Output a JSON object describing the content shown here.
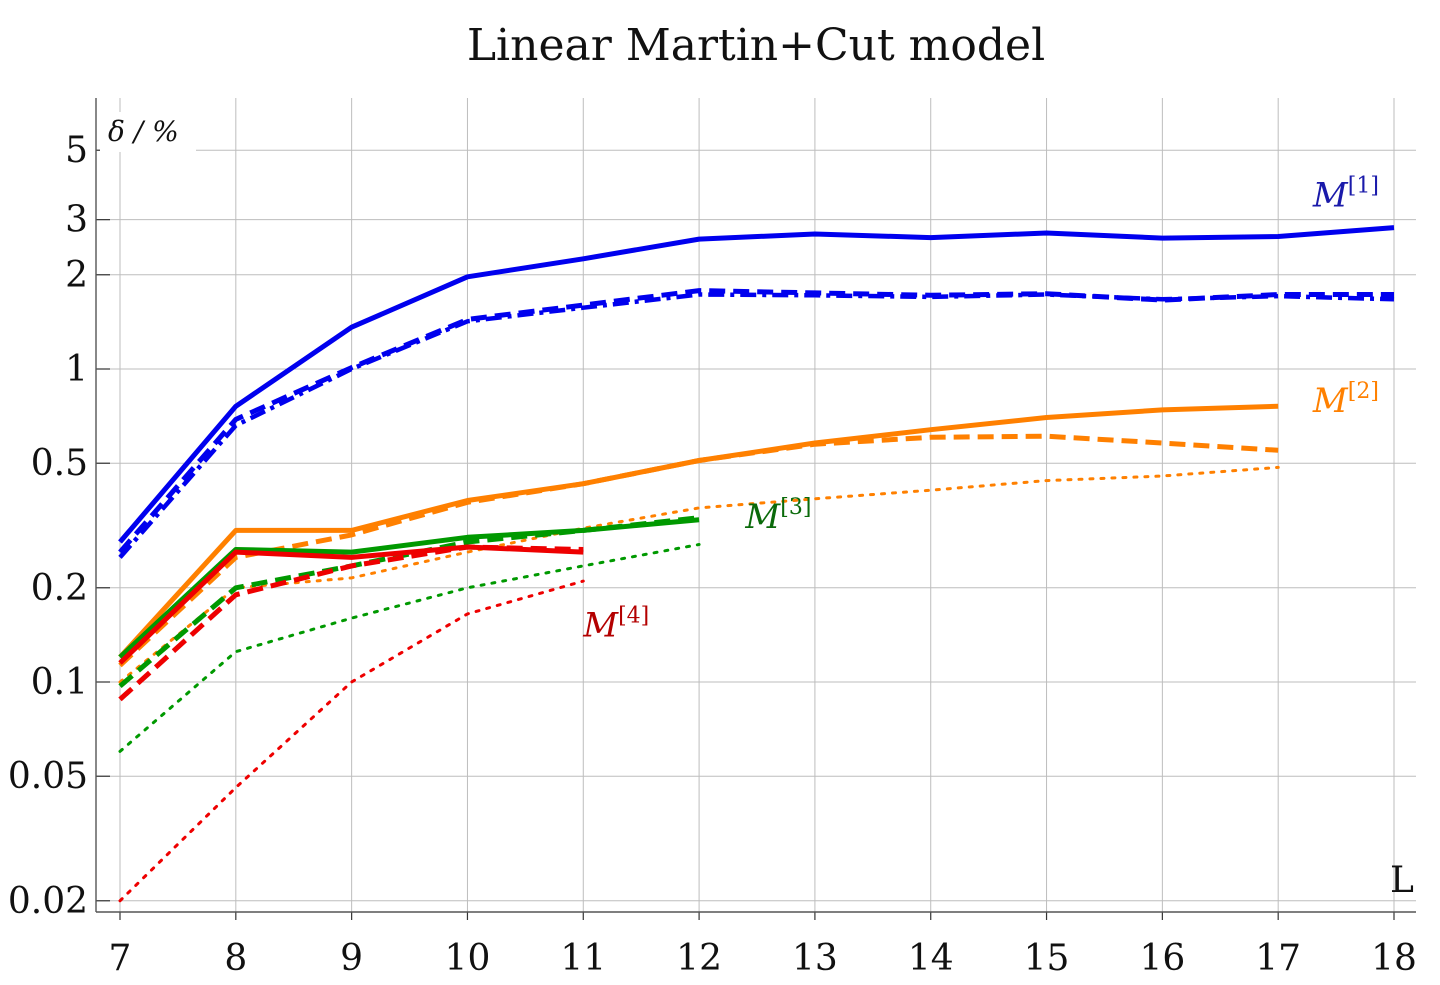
{
  "chart_data": {
    "type": "line",
    "title": "Linear Martin+Cut model",
    "ylabel": "δ / %",
    "xlabel": "L",
    "y_scale": "log",
    "xlim": [
      7,
      18
    ],
    "ylim": [
      0.018,
      8
    ],
    "x_ticks": [
      "7",
      "8",
      "9",
      "10",
      "11",
      "12",
      "13",
      "14",
      "15",
      "16",
      "17",
      "18"
    ],
    "y_ticks": [
      {
        "value": 0.02,
        "label": "0.02"
      },
      {
        "value": 0.05,
        "label": "0.05"
      },
      {
        "value": 0.1,
        "label": "0.1"
      },
      {
        "value": 0.2,
        "label": "0.2"
      },
      {
        "value": 0.5,
        "label": "0.5"
      },
      {
        "value": 1,
        "label": "1"
      },
      {
        "value": 2,
        "label": "2"
      },
      {
        "value": 3,
        "label": "3"
      },
      {
        "value": 5,
        "label": "5"
      }
    ],
    "grid": true,
    "colors": {
      "blue": "#0000ee",
      "orange": "#ff8000",
      "green": "#009900",
      "red": "#ee0000"
    },
    "series_labels": [
      {
        "base": "M",
        "sup": "[1]",
        "color": "#1a1aaa",
        "x": 17.3,
        "y": 3.3
      },
      {
        "base": "M",
        "sup": "[2]",
        "color": "#ff8000",
        "x": 17.3,
        "y": 0.73
      },
      {
        "base": "M",
        "sup": "[3]",
        "color": "#0a6a0a",
        "x": 12.4,
        "y": 0.31
      },
      {
        "base": "M",
        "sup": "[4]",
        "color": "#b30000",
        "x": 11.0,
        "y": 0.14
      }
    ],
    "series": [
      {
        "color": "#0000ee",
        "style": "solid",
        "x": [
          7,
          8,
          9,
          10,
          11,
          12,
          13,
          14,
          15,
          16,
          17,
          18
        ],
        "values": [
          0.28,
          0.76,
          1.36,
          1.97,
          2.25,
          2.6,
          2.7,
          2.63,
          2.72,
          2.62,
          2.65,
          2.83
        ]
      },
      {
        "color": "#0000ee",
        "style": "dashed",
        "x": [
          7,
          8,
          9,
          10,
          11,
          12,
          13,
          14,
          15,
          16,
          17,
          18
        ],
        "values": [
          0.26,
          0.69,
          1.01,
          1.44,
          1.6,
          1.78,
          1.75,
          1.72,
          1.74,
          1.66,
          1.73,
          1.73
        ]
      },
      {
        "color": "#0000ee",
        "style": "dashdot",
        "x": [
          7,
          8,
          9,
          10,
          11,
          12,
          13,
          14,
          15,
          16,
          17,
          18
        ],
        "values": [
          0.25,
          0.66,
          1.0,
          1.42,
          1.57,
          1.73,
          1.72,
          1.7,
          1.73,
          1.67,
          1.71,
          1.67
        ]
      },
      {
        "color": "#ff8000",
        "style": "solid",
        "x": [
          7,
          8,
          9,
          10,
          11,
          12,
          13,
          14,
          15,
          16,
          17
        ],
        "values": [
          0.12,
          0.305,
          0.305,
          0.38,
          0.43,
          0.51,
          0.58,
          0.64,
          0.7,
          0.74,
          0.76
        ]
      },
      {
        "color": "#ff8000",
        "style": "dashed",
        "x": [
          7,
          8,
          9,
          10,
          11,
          12,
          13,
          14,
          15,
          16,
          17
        ],
        "values": [
          0.113,
          0.25,
          0.295,
          0.375,
          0.43,
          0.51,
          0.575,
          0.605,
          0.61,
          0.58,
          0.55
        ]
      },
      {
        "color": "#ff8000",
        "style": "dotted",
        "x": [
          7,
          8,
          9,
          10,
          11,
          12,
          13,
          14,
          15,
          16,
          17
        ],
        "values": [
          0.1,
          0.2,
          0.215,
          0.26,
          0.31,
          0.36,
          0.385,
          0.41,
          0.44,
          0.455,
          0.485
        ]
      },
      {
        "color": "#009900",
        "style": "solid",
        "x": [
          7,
          8,
          9,
          10,
          11,
          12
        ],
        "values": [
          0.12,
          0.265,
          0.26,
          0.29,
          0.305,
          0.33
        ]
      },
      {
        "color": "#009900",
        "style": "dashed",
        "x": [
          7,
          8,
          9,
          10,
          11,
          12
        ],
        "values": [
          0.097,
          0.2,
          0.235,
          0.28,
          0.305,
          0.335
        ]
      },
      {
        "color": "#009900",
        "style": "dotted",
        "x": [
          7,
          8,
          9,
          10,
          11,
          12
        ],
        "values": [
          0.06,
          0.125,
          0.16,
          0.2,
          0.235,
          0.275
        ]
      },
      {
        "color": "#ee0000",
        "style": "solid",
        "x": [
          7,
          8,
          9,
          10,
          11
        ],
        "values": [
          0.115,
          0.26,
          0.25,
          0.27,
          0.26
        ]
      },
      {
        "color": "#ee0000",
        "style": "dashed",
        "x": [
          7,
          8,
          9,
          10,
          11
        ],
        "values": [
          0.088,
          0.19,
          0.235,
          0.27,
          0.265
        ]
      },
      {
        "color": "#ee0000",
        "style": "dotted",
        "x": [
          7,
          8,
          9,
          10,
          11
        ],
        "values": [
          0.02,
          0.046,
          0.1,
          0.165,
          0.21
        ]
      }
    ]
  }
}
